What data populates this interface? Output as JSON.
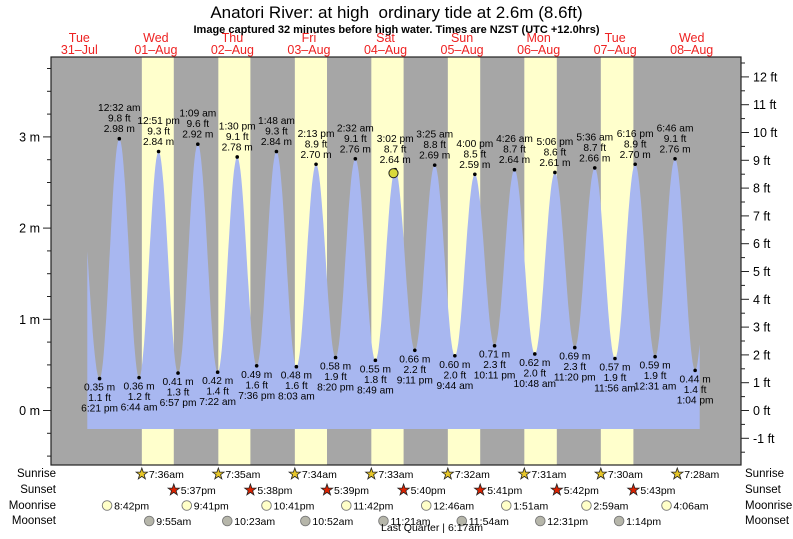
{
  "title": "Anatori River: at high  ordinary tide at 2.6m (8.6ft)",
  "subtitle": "Image captured 32 minutes before high water. Times are NZST (UTC +12.0hrs)",
  "colors": {
    "night_band": "#a6a6a6",
    "daylight_band": "#ffffcc",
    "tide_fill": "#a8b7f0",
    "day_label": "#ee2222",
    "sunrise_star": "#e8c728",
    "sunset_star": "#dd2200",
    "moonrise_circle": "#ffffc8",
    "moonset_circle": "#b6b6aa",
    "current_dot": "#d9d93a",
    "axis": "#222222"
  },
  "chart_data": {
    "type": "area",
    "title": "Anatori River: at high  ordinary tide at 2.6m (8.6ft)",
    "note": "Image captured 32 minutes before high water. Times are NZST (UTC +12.0hrs)",
    "x_days": [
      {
        "name": "Tue",
        "date": "31–Jul"
      },
      {
        "name": "Wed",
        "date": "01–Aug"
      },
      {
        "name": "Thu",
        "date": "02–Aug"
      },
      {
        "name": "Fri",
        "date": "03–Aug"
      },
      {
        "name": "Sat",
        "date": "04–Aug"
      },
      {
        "name": "Sun",
        "date": "05–Aug"
      },
      {
        "name": "Mon",
        "date": "06–Aug"
      },
      {
        "name": "Tue",
        "date": "07–Aug"
      },
      {
        "name": "Wed",
        "date": "08–Aug"
      }
    ],
    "y_left": {
      "unit": "m",
      "major_ticks": [
        0,
        1,
        2,
        3
      ]
    },
    "y_right": {
      "unit": "ft",
      "major_ticks": [
        -1,
        0,
        1,
        2,
        3,
        4,
        5,
        6,
        7,
        8,
        9,
        10,
        11,
        12
      ]
    },
    "tide_events": [
      {
        "day": 0,
        "time": "6:21 pm",
        "type": "low",
        "m": 0.35,
        "ft": 1.1
      },
      {
        "day": 1,
        "time": "12:32 am",
        "type": "high",
        "m": 2.98,
        "ft": 9.8
      },
      {
        "day": 1,
        "time": "6:44 am",
        "type": "low",
        "m": 0.36,
        "ft": 1.2
      },
      {
        "day": 1,
        "time": "12:51 pm",
        "type": "high",
        "m": 2.84,
        "ft": 9.3
      },
      {
        "day": 1,
        "time": "6:57 pm",
        "type": "low",
        "m": 0.41,
        "ft": 1.3
      },
      {
        "day": 2,
        "time": "1:09 am",
        "type": "high",
        "m": 2.92,
        "ft": 9.6
      },
      {
        "day": 2,
        "time": "7:22 am",
        "type": "low",
        "m": 0.42,
        "ft": 1.4
      },
      {
        "day": 2,
        "time": "1:30 pm",
        "type": "high",
        "m": 2.78,
        "ft": 9.1
      },
      {
        "day": 2,
        "time": "7:36 pm",
        "type": "low",
        "m": 0.49,
        "ft": 1.6
      },
      {
        "day": 3,
        "time": "1:48 am",
        "type": "high",
        "m": 2.84,
        "ft": 9.3
      },
      {
        "day": 3,
        "time": "8:03 am",
        "type": "low",
        "m": 0.48,
        "ft": 1.6
      },
      {
        "day": 3,
        "time": "2:13 pm",
        "type": "high",
        "m": 2.7,
        "ft": 8.9
      },
      {
        "day": 3,
        "time": "8:20 pm",
        "type": "low",
        "m": 0.58,
        "ft": 1.9
      },
      {
        "day": 4,
        "time": "2:32 am",
        "type": "high",
        "m": 2.76,
        "ft": 9.1
      },
      {
        "day": 4,
        "time": "8:49 am",
        "type": "low",
        "m": 0.55,
        "ft": 1.8
      },
      {
        "day": 4,
        "time": "3:02 pm",
        "type": "high",
        "m": 2.64,
        "ft": 8.7
      },
      {
        "day": 4,
        "time": "9:11 pm",
        "type": "low",
        "m": 0.66,
        "ft": 2.2
      },
      {
        "day": 5,
        "time": "3:25 am",
        "type": "high",
        "m": 2.69,
        "ft": 8.8
      },
      {
        "day": 5,
        "time": "9:44 am",
        "type": "low",
        "m": 0.6,
        "ft": 2.0
      },
      {
        "day": 5,
        "time": "4:00 pm",
        "type": "high",
        "m": 2.59,
        "ft": 8.5
      },
      {
        "day": 5,
        "time": "10:11 pm",
        "type": "low",
        "m": 0.71,
        "ft": 2.3
      },
      {
        "day": 6,
        "time": "4:26 am",
        "type": "high",
        "m": 2.64,
        "ft": 8.7
      },
      {
        "day": 6,
        "time": "10:48 am",
        "type": "low",
        "m": 0.62,
        "ft": 2.0
      },
      {
        "day": 6,
        "time": "5:06 pm",
        "type": "high",
        "m": 2.61,
        "ft": 8.6
      },
      {
        "day": 6,
        "time": "11:20 pm",
        "type": "low",
        "m": 0.69,
        "ft": 2.3
      },
      {
        "day": 7,
        "time": "5:36 am",
        "type": "high",
        "m": 2.66,
        "ft": 8.7
      },
      {
        "day": 7,
        "time": "11:56 am",
        "type": "low",
        "m": 0.57,
        "ft": 1.9
      },
      {
        "day": 7,
        "time": "6:16 pm",
        "type": "high",
        "m": 2.7,
        "ft": 8.9
      },
      {
        "day": 8,
        "time": "12:31 am",
        "type": "low",
        "m": 0.59,
        "ft": 1.9
      },
      {
        "day": 8,
        "time": "6:46 am",
        "type": "high",
        "m": 2.76,
        "ft": 9.1
      },
      {
        "day": 8,
        "time": "1:04 pm",
        "type": "low",
        "m": 0.44,
        "ft": 1.4
      }
    ],
    "current_marker": {
      "day": 4,
      "near_high_time": "3:02 pm",
      "minutes_before_high": 32
    }
  },
  "almanac": {
    "rows": [
      {
        "label": "Sunrise",
        "icon": "sunrise-star-icon",
        "entries": [
          {
            "day": 1,
            "time": "7:36am"
          },
          {
            "day": 2,
            "time": "7:35am"
          },
          {
            "day": 3,
            "time": "7:34am"
          },
          {
            "day": 4,
            "time": "7:33am"
          },
          {
            "day": 5,
            "time": "7:32am"
          },
          {
            "day": 6,
            "time": "7:31am"
          },
          {
            "day": 7,
            "time": "7:30am"
          },
          {
            "day": 8,
            "time": "7:28am"
          }
        ]
      },
      {
        "label": "Sunset",
        "icon": "sunset-star-icon",
        "entries": [
          {
            "day": 1,
            "time": "5:37pm"
          },
          {
            "day": 2,
            "time": "5:38pm"
          },
          {
            "day": 3,
            "time": "5:39pm"
          },
          {
            "day": 4,
            "time": "5:40pm"
          },
          {
            "day": 5,
            "time": "5:41pm"
          },
          {
            "day": 6,
            "time": "5:42pm"
          },
          {
            "day": 7,
            "time": "5:43pm"
          }
        ]
      },
      {
        "label": "Moonrise",
        "icon": "moonrise-circle-icon",
        "entries": [
          {
            "day": 0,
            "time": "8:42pm"
          },
          {
            "day": 1,
            "time": "9:41pm"
          },
          {
            "day": 2,
            "time": "10:41pm"
          },
          {
            "day": 3,
            "time": "11:42pm"
          },
          {
            "day": 5,
            "time": "12:46am"
          },
          {
            "day": 6,
            "time": "1:51am"
          },
          {
            "day": 7,
            "time": "2:59am"
          },
          {
            "day": 8,
            "time": "4:06am"
          }
        ]
      },
      {
        "label": "Moonset",
        "icon": "moonset-circle-icon",
        "entries": [
          {
            "day": 1,
            "time": "9:55am"
          },
          {
            "day": 2,
            "time": "10:23am"
          },
          {
            "day": 3,
            "time": "10:52am"
          },
          {
            "day": 4,
            "time": "11:21am"
          },
          {
            "day": 5,
            "time": "11:54am"
          },
          {
            "day": 6,
            "time": "12:31pm"
          },
          {
            "day": 7,
            "time": "1:14pm"
          }
        ]
      }
    ],
    "moon_phase": "Last Quarter | 6:17am"
  }
}
